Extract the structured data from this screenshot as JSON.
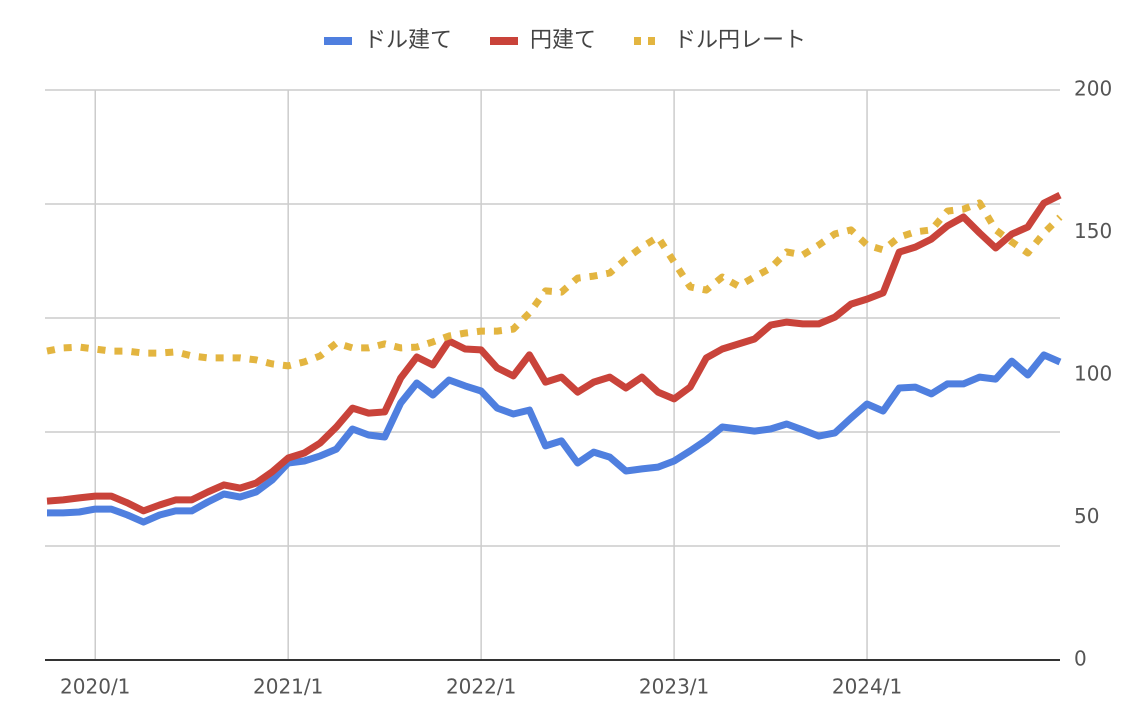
{
  "chart_data": {
    "type": "line",
    "x": [
      "2019/10",
      "2019/11",
      "2019/12",
      "2020/1",
      "2020/2",
      "2020/3",
      "2020/4",
      "2020/5",
      "2020/6",
      "2020/7",
      "2020/8",
      "2020/9",
      "2020/10",
      "2020/11",
      "2020/12",
      "2021/1",
      "2021/2",
      "2021/3",
      "2021/4",
      "2021/5",
      "2021/6",
      "2021/7",
      "2021/8",
      "2021/9",
      "2021/10",
      "2021/11",
      "2021/12",
      "2022/1",
      "2022/2",
      "2022/3",
      "2022/4",
      "2022/5",
      "2022/6",
      "2022/7",
      "2022/8",
      "2022/9",
      "2022/10",
      "2022/11",
      "2022/12",
      "2023/1",
      "2023/2",
      "2023/3",
      "2023/4",
      "2023/5",
      "2023/6",
      "2023/7",
      "2023/8",
      "2023/9",
      "2023/10",
      "2023/11",
      "2023/12",
      "2024/1",
      "2024/2",
      "2024/3",
      "2024/4",
      "2024/5",
      "2024/6",
      "2024/7",
      "2024/8",
      "2024/9",
      "2024/10",
      "2024/11",
      "2024/12",
      "2025/1"
    ],
    "xlim": [
      "2019/10",
      "2025/1"
    ],
    "xticks": [
      "2020/1",
      "2021/1",
      "2022/1",
      "2023/1",
      "2024/1"
    ],
    "ylim": [
      0,
      250
    ],
    "yticks": [
      0,
      50,
      100,
      150,
      200,
      250
    ],
    "ytick_labels": false,
    "y2lim": [
      0,
      200
    ],
    "y2ticks": [
      0,
      50,
      100,
      150,
      200
    ],
    "grid": true,
    "legend": "top",
    "series": [
      {
        "name": "ドル建て",
        "color": "#4f7fdf",
        "style": "solid",
        "values": [
          64.5,
          64.5,
          64.9,
          66.2,
          66.2,
          63.6,
          60.5,
          63.6,
          65.4,
          65.4,
          69.3,
          72.8,
          71.5,
          73.7,
          78.9,
          86.4,
          87.3,
          89.5,
          92.5,
          101.3,
          98.7,
          97.8,
          112.7,
          121.5,
          116.2,
          122.8,
          120.2,
          118.0,
          110.5,
          107.9,
          109.6,
          93.9,
          96.1,
          86.4,
          91.2,
          89.0,
          82.9,
          83.8,
          84.6,
          87.3,
          91.7,
          96.5,
          102.2,
          101.3,
          100.4,
          101.3,
          103.5,
          100.9,
          98.2,
          99.6,
          106.1,
          112.3,
          109.2,
          119.3,
          119.7,
          116.7,
          121.1,
          121.1,
          124.1,
          123.2,
          131.1,
          125.0,
          133.8,
          130.7
        ]
      },
      {
        "name": "円建て",
        "color": "#c9433a",
        "style": "solid",
        "values": [
          69.7,
          70.2,
          71.1,
          71.9,
          71.9,
          68.9,
          65.4,
          68.0,
          70.2,
          70.2,
          73.7,
          76.8,
          75.4,
          77.6,
          82.5,
          88.6,
          90.8,
          95.2,
          102.2,
          110.5,
          108.3,
          108.8,
          123.7,
          132.9,
          129.4,
          139.9,
          136.4,
          136.0,
          128.1,
          124.6,
          133.8,
          121.9,
          124.1,
          117.5,
          121.9,
          124.1,
          119.3,
          124.1,
          117.5,
          114.5,
          119.7,
          132.5,
          136.4,
          138.6,
          140.8,
          146.9,
          148.2,
          147.4,
          147.4,
          150.4,
          156.1,
          158.3,
          161.0,
          178.9,
          181.1,
          184.6,
          190.4,
          194.3,
          187.3,
          180.7,
          186.8,
          189.9,
          200.4,
          203.9
        ]
      },
      {
        "name": "ドル円レート",
        "color": "#e3b540",
        "style": "dotted",
        "axis": "y2",
        "values": [
          108.4,
          109.5,
          109.8,
          109.1,
          108.4,
          108.4,
          107.7,
          107.7,
          108.1,
          106.7,
          106.0,
          106.0,
          106.0,
          105.3,
          103.9,
          103.2,
          104.6,
          106.7,
          111.2,
          109.5,
          109.5,
          110.9,
          109.5,
          109.8,
          111.6,
          113.7,
          114.7,
          115.4,
          115.4,
          116.1,
          121.8,
          129.5,
          129.1,
          134.0,
          134.7,
          135.8,
          140.7,
          144.9,
          148.4,
          139.6,
          130.9,
          129.8,
          134.4,
          131.2,
          134.4,
          137.5,
          143.2,
          142.1,
          145.6,
          149.5,
          150.9,
          145.6,
          143.9,
          148.4,
          150.2,
          150.9,
          157.5,
          158.2,
          160.4,
          150.9,
          146.7,
          142.8,
          149.8,
          155.4
        ]
      }
    ]
  }
}
